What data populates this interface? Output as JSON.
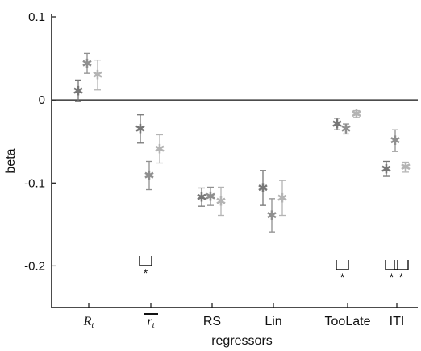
{
  "chart_data": {
    "type": "scatter",
    "ylabel": "beta",
    "xlabel": "regressors",
    "ylim": [
      -0.25,
      0.1
    ],
    "yticks": [
      {
        "value": 0.1,
        "label": "0.1"
      },
      {
        "value": 0,
        "label": "0"
      },
      {
        "value": -0.1,
        "label": "-0.1"
      },
      {
        "value": -0.2,
        "label": "-0.2"
      }
    ],
    "categories": [
      {
        "label": "R",
        "sub": "t",
        "style": "italic",
        "overline": false
      },
      {
        "label": "r",
        "sub": "t",
        "style": "italic",
        "overline": true
      },
      {
        "label": "RS",
        "sub": "",
        "style": "plain",
        "overline": false
      },
      {
        "label": "Lin",
        "sub": "",
        "style": "plain",
        "overline": false
      },
      {
        "label": "TooLate",
        "sub": "",
        "style": "plain",
        "overline": false
      },
      {
        "label": "ITI",
        "sub": "",
        "style": "plain",
        "overline": false
      }
    ],
    "zero_line": true,
    "colors": [
      "#555555",
      "#777777",
      "#8f8f8f",
      "#b4b4b4"
    ],
    "series": [
      {
        "means": [
          0.011,
          -0.035,
          -0.117,
          -0.106,
          -0.029,
          -0.083
        ],
        "errors": [
          0.013,
          0.017,
          0.011,
          0.021,
          0.007,
          0.009
        ]
      },
      {
        "means": [
          0.044,
          -0.091,
          -0.116,
          -0.139,
          -0.035,
          -0.049
        ],
        "errors": [
          0.012,
          0.017,
          0.011,
          0.02,
          0.006,
          0.013
        ]
      },
      {
        "means": [
          0.03,
          -0.059,
          -0.122,
          -0.118,
          -0.017,
          -0.081
        ],
        "errors": [
          0.018,
          0.017,
          0.017,
          0.021,
          0.004,
          0.006
        ]
      }
    ],
    "significance": [
      {
        "category": 1,
        "pairs": [
          [
            0,
            1
          ]
        ],
        "star": "*"
      },
      {
        "category": 4,
        "pairs": [
          [
            0,
            1
          ]
        ],
        "star": "*"
      },
      {
        "category": 5,
        "pairs": [
          [
            0,
            1
          ],
          [
            1,
            2
          ]
        ],
        "star": "*"
      }
    ]
  }
}
